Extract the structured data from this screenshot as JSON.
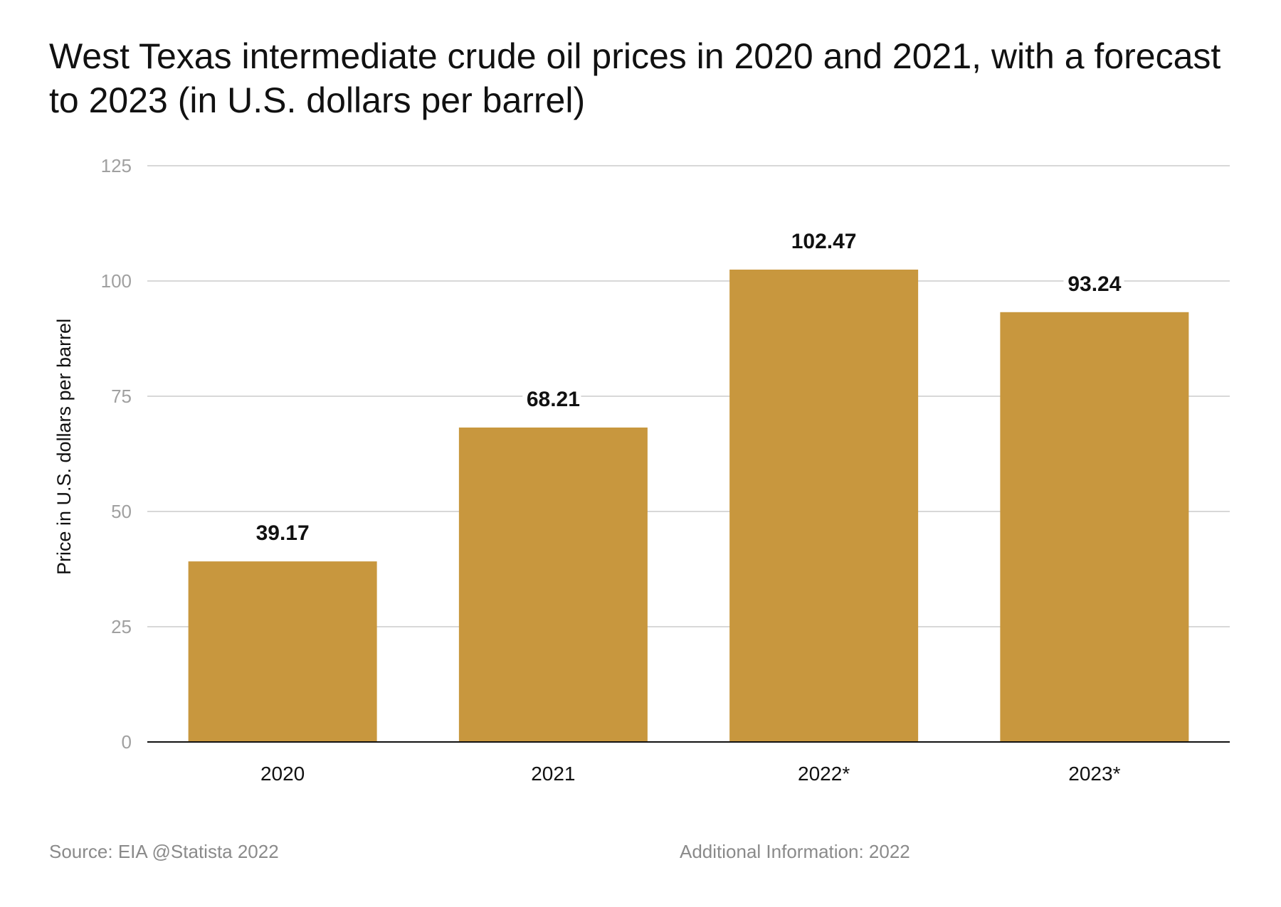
{
  "title": "West Texas intermediate crude oil prices in 2020 and 2021, with a forecast to 2023 (in U.S. dollars per barrel)",
  "footer": {
    "source": "Source: EIA @Statista 2022",
    "additional_info": "Additional Information: 2022"
  },
  "colors": {
    "bar": "#C8973E",
    "grid": "#cccccc",
    "axis": "#111111",
    "tick_label": "#a0a0a0",
    "category_label": "#111111",
    "value_label": "#111111"
  },
  "chart_data": {
    "type": "bar",
    "title": "West Texas intermediate crude oil prices in 2020 and 2021, with a forecast to 2023 (in U.S. dollars per barrel)",
    "xlabel": "",
    "ylabel": "Price in U.S. dollars per barrel",
    "categories": [
      "2020",
      "2021",
      "2022*",
      "2023*"
    ],
    "values": [
      39.17,
      68.21,
      102.47,
      93.24
    ],
    "value_labels": [
      "39.17",
      "68.21",
      "102.47",
      "93.24"
    ],
    "ylim": [
      0,
      125
    ],
    "yticks": [
      0,
      25,
      50,
      75,
      100,
      125
    ],
    "grid": true,
    "legend": "none"
  }
}
